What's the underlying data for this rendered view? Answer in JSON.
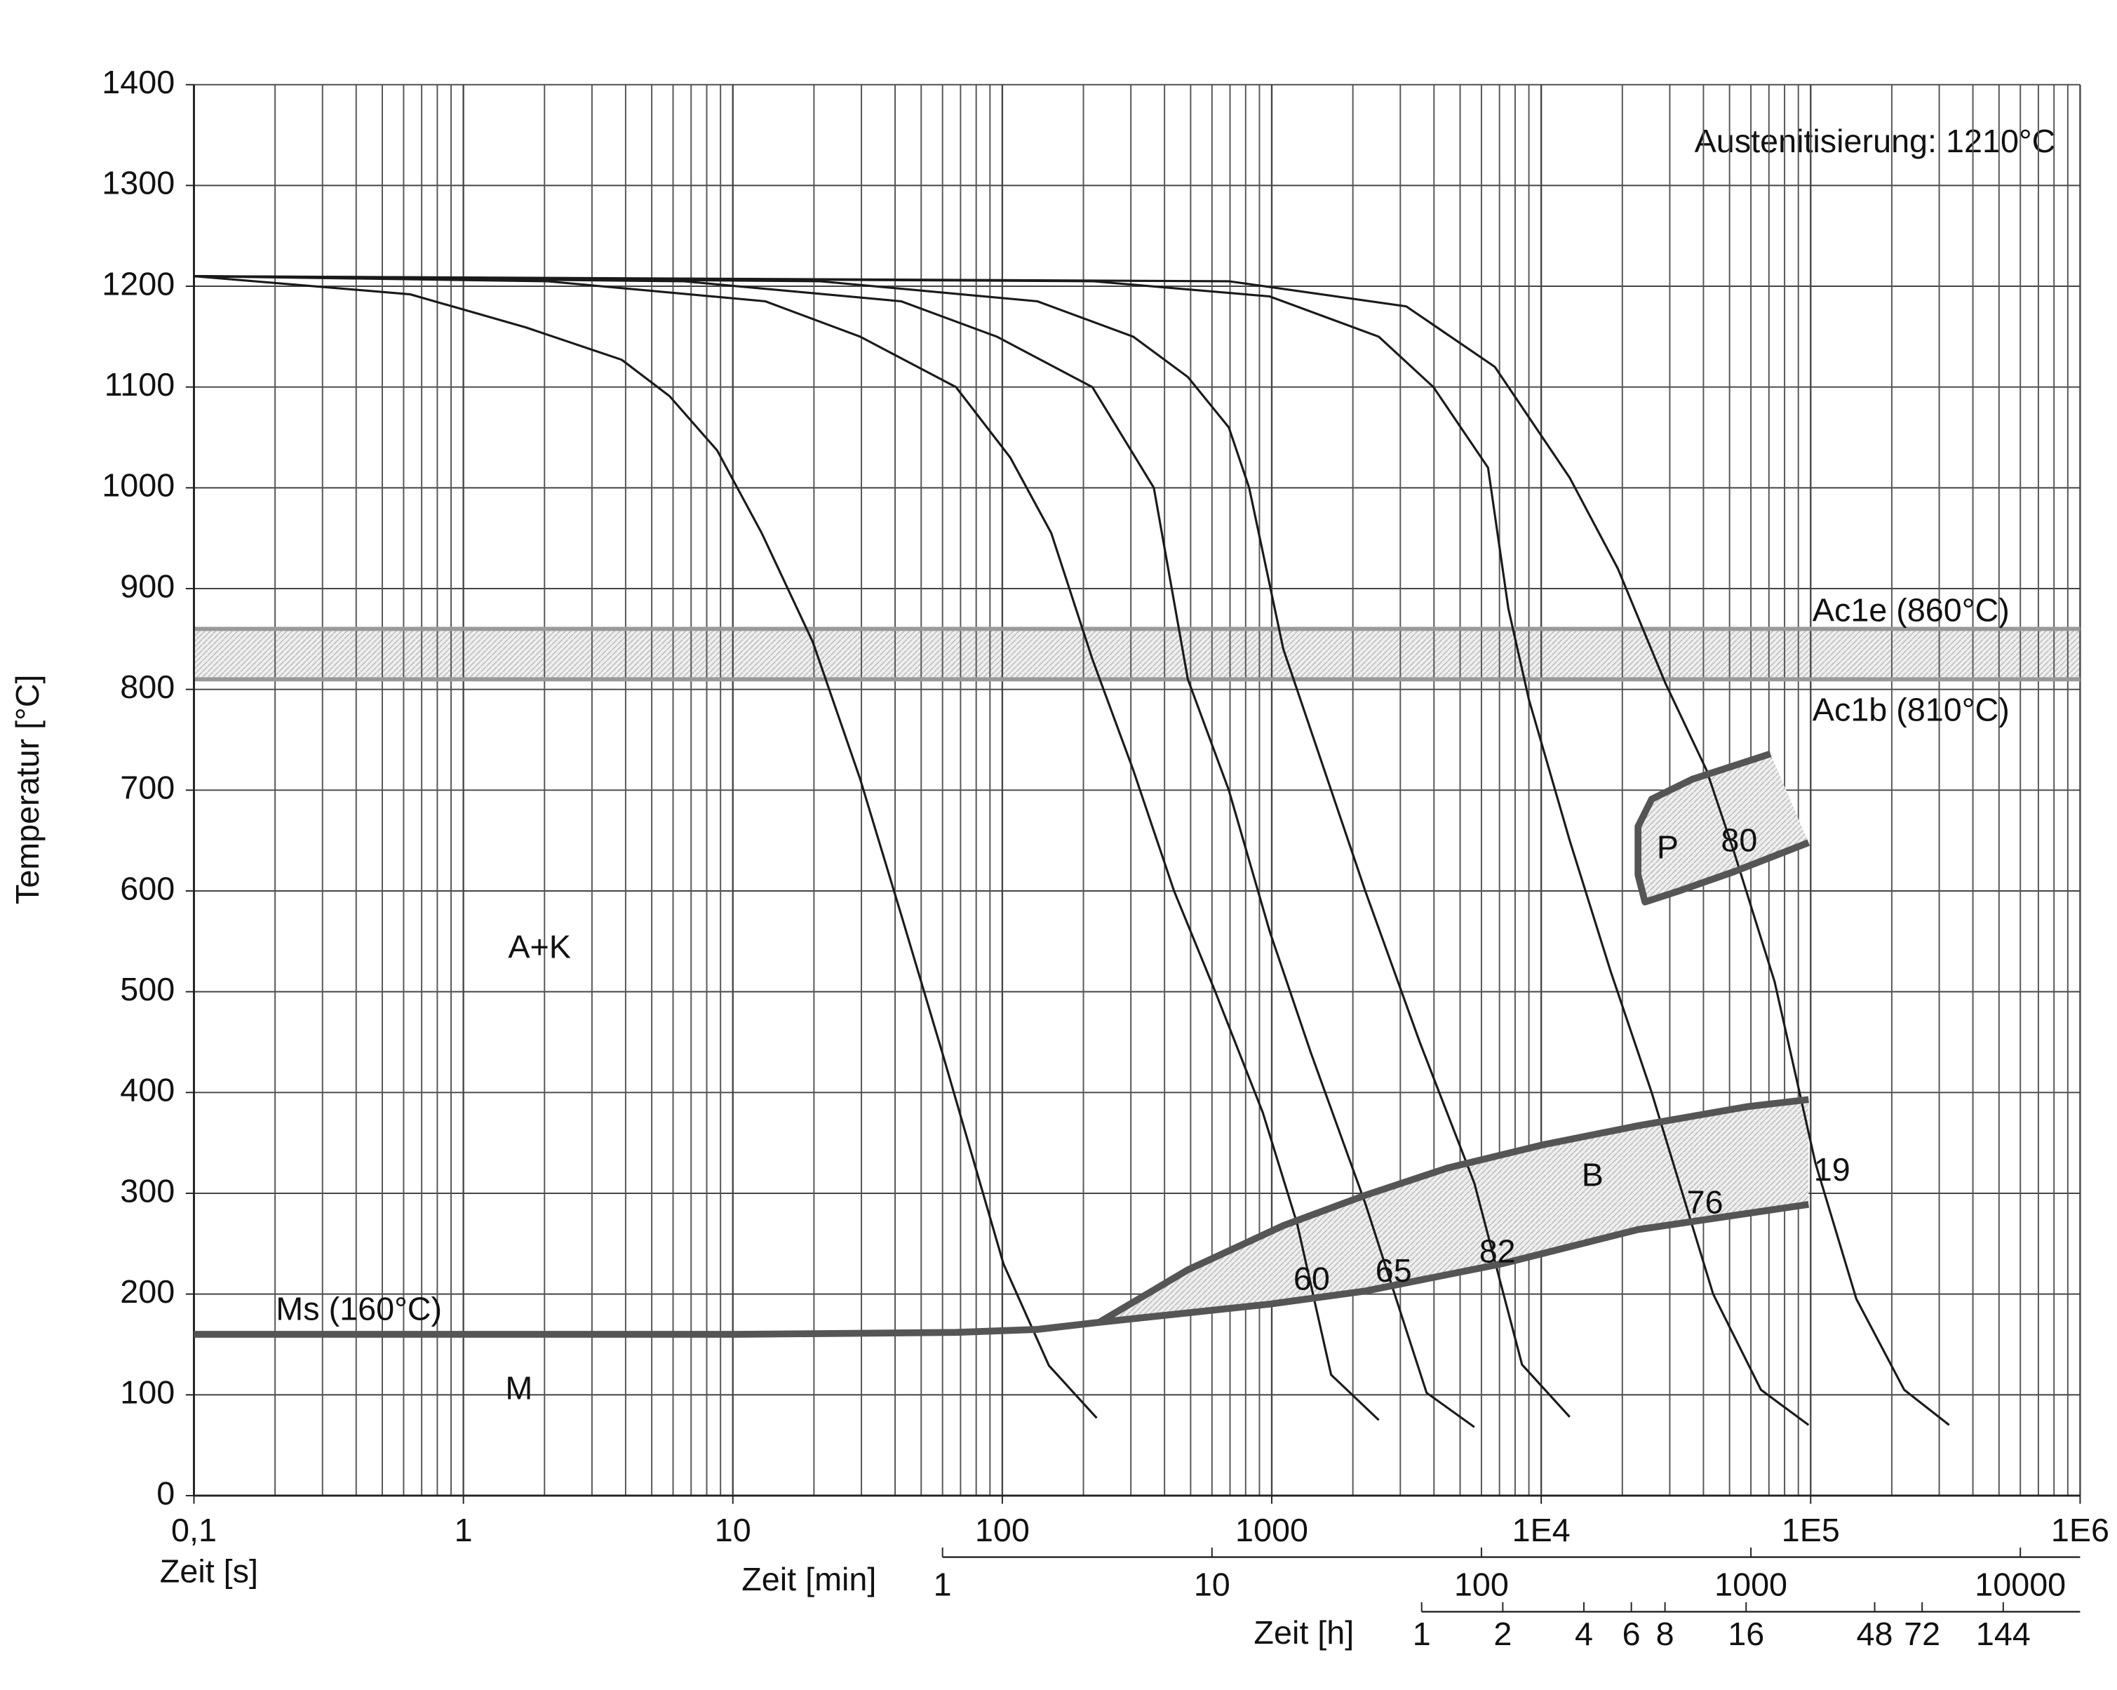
{
  "chart_data": {
    "type": "line",
    "y_label": "Temperatur [°C]",
    "x_label": "Zeit [s]",
    "log_x": true,
    "grid": true,
    "xlim": [
      0.1,
      1000000
    ],
    "xticks": [
      {
        "value": 0.1,
        "label": "0,1"
      },
      1,
      10,
      100,
      1000,
      {
        "value": 10000,
        "label": "1E4"
      },
      {
        "value": 100000,
        "label": "1E5"
      },
      {
        "value": 1000000,
        "label": "1E6"
      }
    ],
    "xminorticks": [
      0.2,
      0.3,
      0.4,
      0.5,
      0.6,
      0.7,
      0.8,
      0.9,
      2,
      3,
      4,
      5,
      6,
      7,
      8,
      9,
      20,
      30,
      40,
      50,
      60,
      70,
      80,
      90,
      200,
      300,
      400,
      500,
      600,
      700,
      800,
      900,
      2000,
      3000,
      4000,
      5000,
      6000,
      7000,
      8000,
      9000,
      20000,
      30000,
      40000,
      50000,
      60000,
      70000,
      80000,
      90000,
      200000,
      300000,
      400000,
      500000,
      600000,
      700000,
      800000,
      900000
    ],
    "ylim": [
      0,
      1400
    ],
    "yticks": [
      0,
      100,
      200,
      300,
      400,
      500,
      600,
      700,
      800,
      900,
      1000,
      1100,
      1200,
      1300,
      1400
    ],
    "x2": {
      "label": "Zeit [min]",
      "ticks": [
        {
          "value": 60,
          "label": "1"
        },
        {
          "value": 600,
          "label": "10"
        },
        {
          "value": 6000,
          "label": "100"
        },
        {
          "value": 60000,
          "label": "1000"
        },
        {
          "value": 600000,
          "label": "10000"
        }
      ]
    },
    "x3": {
      "label": "Zeit [h]",
      "ticks": [
        {
          "value": 3600,
          "label": "1"
        },
        {
          "value": 7200,
          "label": "2"
        },
        {
          "value": 14400,
          "label": "4"
        },
        {
          "value": 21600,
          "label": "6"
        },
        {
          "value": 28800,
          "label": "8"
        },
        {
          "value": 57600,
          "label": "16"
        },
        {
          "value": 172800,
          "label": "48"
        },
        {
          "value": 259200,
          "label": "72"
        },
        {
          "value": 518400,
          "label": "144"
        }
      ]
    },
    "annotation": "Austenitisierung: 1210°C",
    "band": {
      "color": "#999999",
      "upper": {
        "value": 860,
        "label": "Ac1e (860°C)"
      },
      "lower": {
        "value": 810,
        "label": "Ac1b (810°C)"
      }
    },
    "phase_labels": [
      "A+K",
      "M"
    ],
    "hardness_labels": [
      "60",
      "65",
      "82",
      "76",
      "19",
      "80"
    ],
    "curve_color": "#1a1a1a",
    "boundary_color": "#555555",
    "series": [
      {
        "x": [
          0.1,
          0.635,
          1.71,
          3.87,
          5.82,
          8.75,
          12.8,
          19.8,
          29.7,
          42.2,
          59.8,
          101,
          149,
          224
        ],
        "y": [
          1210,
          1192,
          1159,
          1127,
          1091,
          1037,
          955,
          847,
          711,
          576,
          440,
          230,
          129,
          77
        ]
      },
      {
        "x": [
          0.1,
          2.04,
          13.2,
          29.7,
          67.3,
          107,
          152,
          216,
          306,
          434,
          617,
          927,
          1242,
          1660,
          2496
        ],
        "y": [
          1210,
          1205,
          1185,
          1150,
          1100,
          1030,
          955,
          830,
          720,
          600,
          500,
          380,
          270,
          120,
          75
        ]
      },
      {
        "x": [
          0.1,
          6.53,
          42.2,
          95.5,
          216,
          365,
          488,
          693,
          982,
          1394,
          2222,
          3755,
          5651
        ],
        "y": [
          1210,
          1205,
          1185,
          1150,
          1100,
          1000,
          810,
          700,
          560,
          440,
          290,
          102,
          68
        ]
      },
      {
        "x": [
          0.1,
          21.0,
          135,
          306,
          488,
          693,
          824,
          1104,
          1567,
          2222,
          3541,
          5651,
          8492,
          12760
        ],
        "y": [
          1210,
          1205,
          1185,
          1150,
          1110,
          1060,
          1000,
          840,
          720,
          600,
          450,
          310,
          130,
          78
        ]
      },
      {
        "x": [
          0.1,
          216,
          982,
          2496,
          3981,
          6350,
          7551,
          8995,
          12760,
          18110,
          25700,
          43450,
          65340,
          98240
        ],
        "y": [
          1210,
          1205,
          1190,
          1150,
          1100,
          1020,
          880,
          790,
          650,
          520,
          400,
          200,
          105,
          70
        ]
      },
      {
        "x": [
          0.1,
          693,
          3155,
          6730,
          12760,
          19230,
          28900,
          41020,
          51760,
          73450,
          104200,
          147900,
          222300,
          326600
        ],
        "y": [
          1210,
          1205,
          1180,
          1120,
          1010,
          920,
          806,
          720,
          640,
          510,
          330,
          195,
          105,
          70
        ]
      }
    ],
    "ms_line": {
      "label": "Ms (160°C)",
      "x": [
        0.1,
        10.4,
        67.3,
        135,
        229
      ],
      "y": [
        160,
        160,
        162,
        165,
        172
      ]
    },
    "regions": [
      {
        "name": "B",
        "upper": {
          "x": [
            229,
            488,
            1104,
            2222,
            4477,
            10110,
            22860,
            58210,
            98240
          ],
          "y": [
            172,
            224,
            268,
            298,
            325,
            348,
            367,
            386,
            393
          ]
        },
        "lower": {
          "x": [
            229,
            982,
            2222,
            7129,
            22860,
            98240
          ],
          "y": [
            172,
            190,
            203,
            230,
            264,
            289
          ]
        }
      },
      {
        "name": "P",
        "outline": {
          "x": [
            70960,
            36480,
            25700,
            22860,
            22860,
            24260,
            32440,
            51760,
            98240
          ],
          "y": [
            736,
            711,
            691,
            664,
            616,
            589,
            600,
            619,
            648
          ]
        }
      }
    ]
  }
}
